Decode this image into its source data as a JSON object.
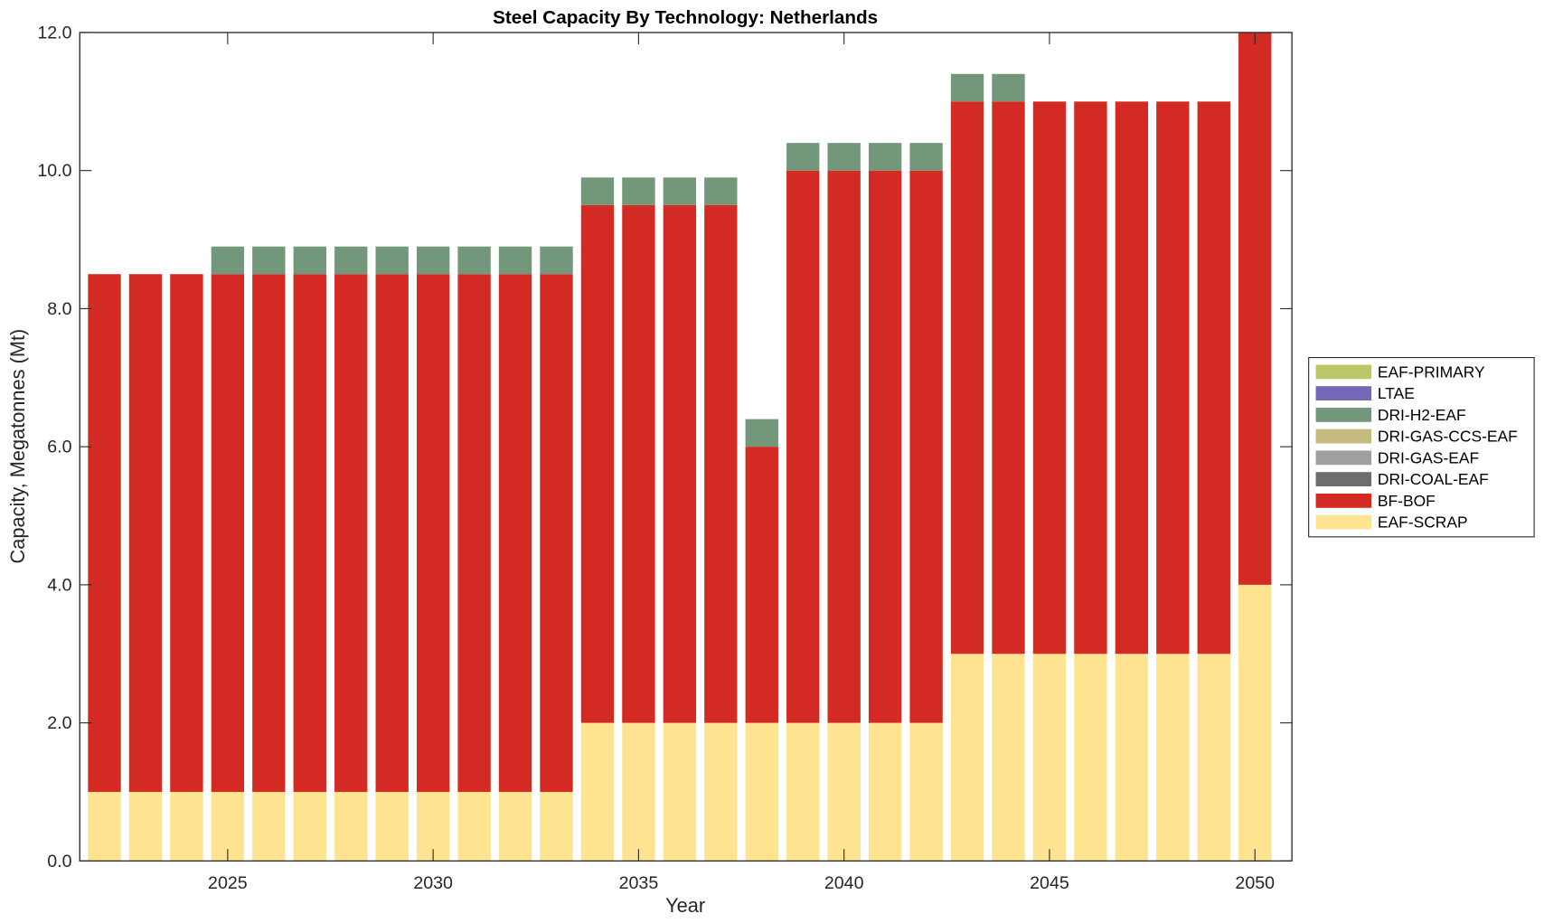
{
  "chart_data": {
    "type": "bar",
    "stacked": true,
    "title": "Steel Capacity By Technology: Netherlands",
    "xlabel": "Year",
    "ylabel": "Capacity, Megatonnes (Mt)",
    "ylim": [
      0,
      12
    ],
    "xlim": [
      2021.4,
      2050.9
    ],
    "yticks": [
      "0.0",
      "2.0",
      "4.0",
      "6.0",
      "8.0",
      "10.0",
      "12.0"
    ],
    "ytick_values": [
      0,
      2,
      4,
      6,
      8,
      10,
      12
    ],
    "xticks": [
      "2025",
      "2030",
      "2035",
      "2040",
      "2045",
      "2050"
    ],
    "xtick_values": [
      2025,
      2030,
      2035,
      2040,
      2045,
      2050
    ],
    "grid": false,
    "legend_position": "right",
    "x": [
      2022,
      2023,
      2024,
      2025,
      2026,
      2027,
      2028,
      2029,
      2030,
      2031,
      2032,
      2033,
      2034,
      2035,
      2036,
      2037,
      2038,
      2039,
      2040,
      2041,
      2042,
      2043,
      2044,
      2045,
      2046,
      2047,
      2048,
      2049,
      2050
    ],
    "series": [
      {
        "name": "EAF-SCRAP",
        "color": "#FEE391",
        "values": [
          1,
          1,
          1,
          1,
          1,
          1,
          1,
          1,
          1,
          1,
          1,
          1,
          2,
          2,
          2,
          2,
          2,
          2,
          2,
          2,
          2,
          3,
          3,
          3,
          3,
          3,
          3,
          3,
          4
        ]
      },
      {
        "name": "BF-BOF",
        "color": "#D42A24",
        "values": [
          7.5,
          7.5,
          7.5,
          7.5,
          7.5,
          7.5,
          7.5,
          7.5,
          7.5,
          7.5,
          7.5,
          7.5,
          7.5,
          7.5,
          7.5,
          7.5,
          4,
          8,
          8,
          8,
          8,
          8,
          8,
          8,
          8,
          8,
          8,
          8,
          8
        ]
      },
      {
        "name": "DRI-COAL-EAF",
        "color": "#6E6E6E",
        "values": [
          0,
          0,
          0,
          0,
          0,
          0,
          0,
          0,
          0,
          0,
          0,
          0,
          0,
          0,
          0,
          0,
          0,
          0,
          0,
          0,
          0,
          0,
          0,
          0,
          0,
          0,
          0,
          0,
          0
        ]
      },
      {
        "name": "DRI-GAS-EAF",
        "color": "#9F9F9F",
        "values": [
          0,
          0,
          0,
          0,
          0,
          0,
          0,
          0,
          0,
          0,
          0,
          0,
          0,
          0,
          0,
          0,
          0,
          0,
          0,
          0,
          0,
          0,
          0,
          0,
          0,
          0,
          0,
          0,
          0
        ]
      },
      {
        "name": "DRI-GAS-CCS-EAF",
        "color": "#C5BB7E",
        "values": [
          0,
          0,
          0,
          0,
          0,
          0,
          0,
          0,
          0,
          0,
          0,
          0,
          0,
          0,
          0,
          0,
          0,
          0,
          0,
          0,
          0,
          0,
          0,
          0,
          0,
          0,
          0,
          0,
          0
        ]
      },
      {
        "name": "DRI-H2-EAF",
        "color": "#73977A",
        "values": [
          0,
          0,
          0,
          0.4,
          0.4,
          0.4,
          0.4,
          0.4,
          0.4,
          0.4,
          0.4,
          0.4,
          0.4,
          0.4,
          0.4,
          0.4,
          0.4,
          0.4,
          0.4,
          0.4,
          0.4,
          0.4,
          0.4,
          0,
          0,
          0,
          0,
          0,
          0
        ]
      },
      {
        "name": "LTAE",
        "color": "#7468B7",
        "values": [
          0,
          0,
          0,
          0,
          0,
          0,
          0,
          0,
          0,
          0,
          0,
          0,
          0,
          0,
          0,
          0,
          0,
          0,
          0,
          0,
          0,
          0,
          0,
          0,
          0,
          0,
          0,
          0,
          0
        ]
      },
      {
        "name": "EAF-PRIMARY",
        "color": "#BDC76A",
        "values": [
          0,
          0,
          0,
          0,
          0,
          0,
          0,
          0,
          0,
          0,
          0,
          0,
          0,
          0,
          0,
          0,
          0,
          0,
          0,
          0,
          0,
          0,
          0,
          0,
          0,
          0,
          0,
          0,
          0
        ]
      }
    ],
    "legend_order": [
      "EAF-PRIMARY",
      "LTAE",
      "DRI-H2-EAF",
      "DRI-GAS-CCS-EAF",
      "DRI-GAS-EAF",
      "DRI-COAL-EAF",
      "BF-BOF",
      "EAF-SCRAP"
    ]
  }
}
